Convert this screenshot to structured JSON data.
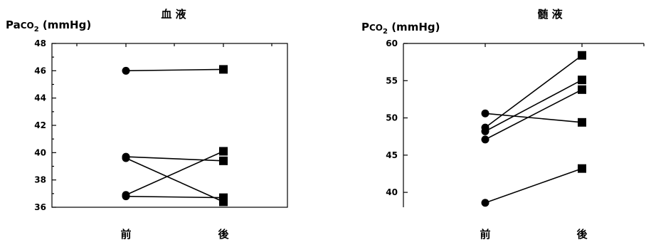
{
  "chart_data": [
    {
      "type": "line",
      "title": "血 液",
      "ylabel": "PaCO2 (mmHg)",
      "ylabel_parts": [
        "Pa",
        "CO",
        "2",
        " (mmHg)"
      ],
      "xlabel": "",
      "categories": [
        "前",
        "後"
      ],
      "ylim": [
        36,
        48
      ],
      "yticks": [
        36,
        38,
        40,
        42,
        44,
        46,
        48
      ],
      "box": true,
      "grid": false,
      "markers": {
        "前": "circle",
        "後": "square"
      },
      "series": [
        {
          "values": [
            46.0,
            46.1
          ]
        },
        {
          "values": [
            39.7,
            39.4
          ]
        },
        {
          "values": [
            39.6,
            36.4
          ]
        },
        {
          "values": [
            36.9,
            40.1
          ]
        },
        {
          "values": [
            36.8,
            36.7
          ]
        }
      ]
    },
    {
      "type": "line",
      "title": "髄 液",
      "ylabel": "PCO2 (mmHg)",
      "ylabel_parts": [
        "P",
        "CO",
        "2",
        " (mmHg)"
      ],
      "xlabel": "",
      "categories": [
        "前",
        "後"
      ],
      "ylim": [
        38,
        60
      ],
      "yticks": [
        40,
        45,
        50,
        55,
        60
      ],
      "box": false,
      "grid": false,
      "markers": {
        "前": "circle",
        "後": "square"
      },
      "series": [
        {
          "values": [
            50.6,
            49.4
          ]
        },
        {
          "values": [
            48.7,
            58.4
          ]
        },
        {
          "values": [
            48.2,
            55.1
          ]
        },
        {
          "values": [
            47.1,
            53.8
          ]
        },
        {
          "values": [
            38.6,
            43.2
          ]
        }
      ]
    }
  ]
}
